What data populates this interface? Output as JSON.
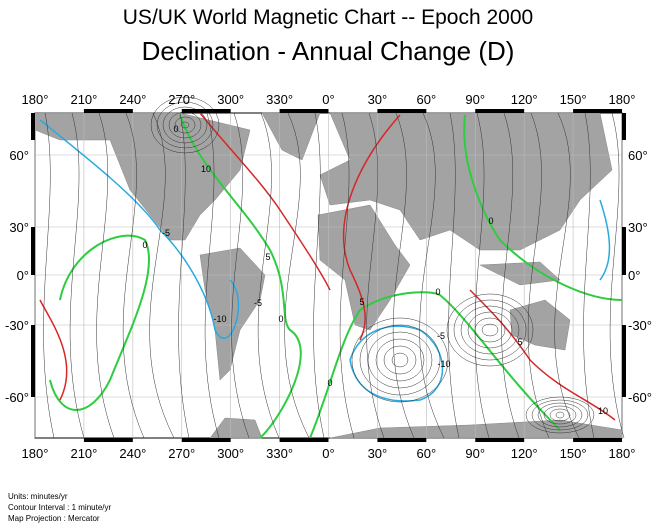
{
  "title": "US/UK World Magnetic Chart  --  Epoch 2000",
  "subtitle": "Declination - Annual Change (D)",
  "longitude_labels": [
    "180°",
    "210°",
    "240°",
    "270°",
    "300°",
    "330°",
    "0°",
    "30°",
    "60°",
    "90°",
    "120°",
    "150°",
    "180°"
  ],
  "latitude_labels": [
    "60°",
    "30°",
    "0°",
    "-30°",
    "-60°"
  ],
  "contour_labels": [
    "0",
    "10",
    "-5",
    "0",
    "5",
    "-10",
    "-5",
    "0",
    "5",
    "0",
    "-5",
    "-10",
    "5",
    "0",
    "0",
    "10"
  ],
  "notes": [
    "Units: minutes/yr",
    "Contour Interval : 1 minute/yr",
    "Map Projection : Mercator"
  ]
}
